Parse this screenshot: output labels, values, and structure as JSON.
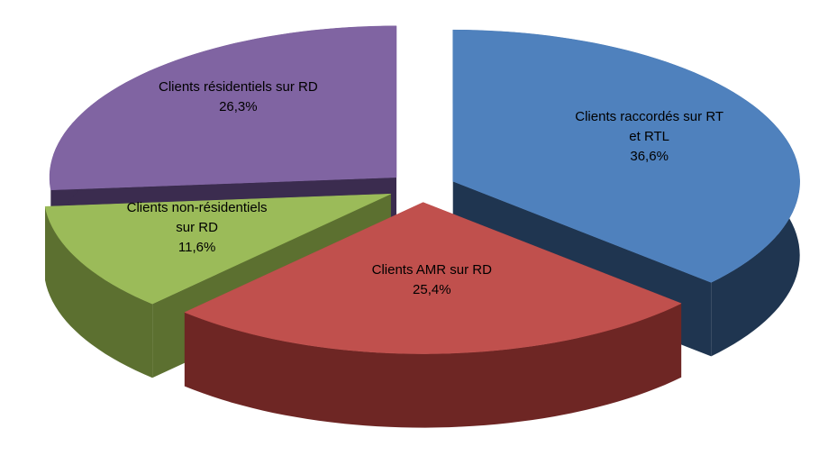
{
  "chart_data": {
    "type": "pie3d",
    "categories": [
      "Clients raccordés sur RT et RTL",
      "Clients AMR sur RD",
      "Clients non-résidentiels sur RD",
      "Clients résidentiels sur RD"
    ],
    "values": [
      36.6,
      25.4,
      11.6,
      26.3
    ],
    "value_labels": [
      "36,6%",
      "25,4%",
      "11,6%",
      "26,3%"
    ],
    "colors": [
      "#4f81bd",
      "#c0504d",
      "#9bbb59",
      "#8064a2"
    ],
    "side_colors": [
      "#1f3550",
      "#6e2624",
      "#5c7030",
      "#3b2c4f"
    ]
  }
}
